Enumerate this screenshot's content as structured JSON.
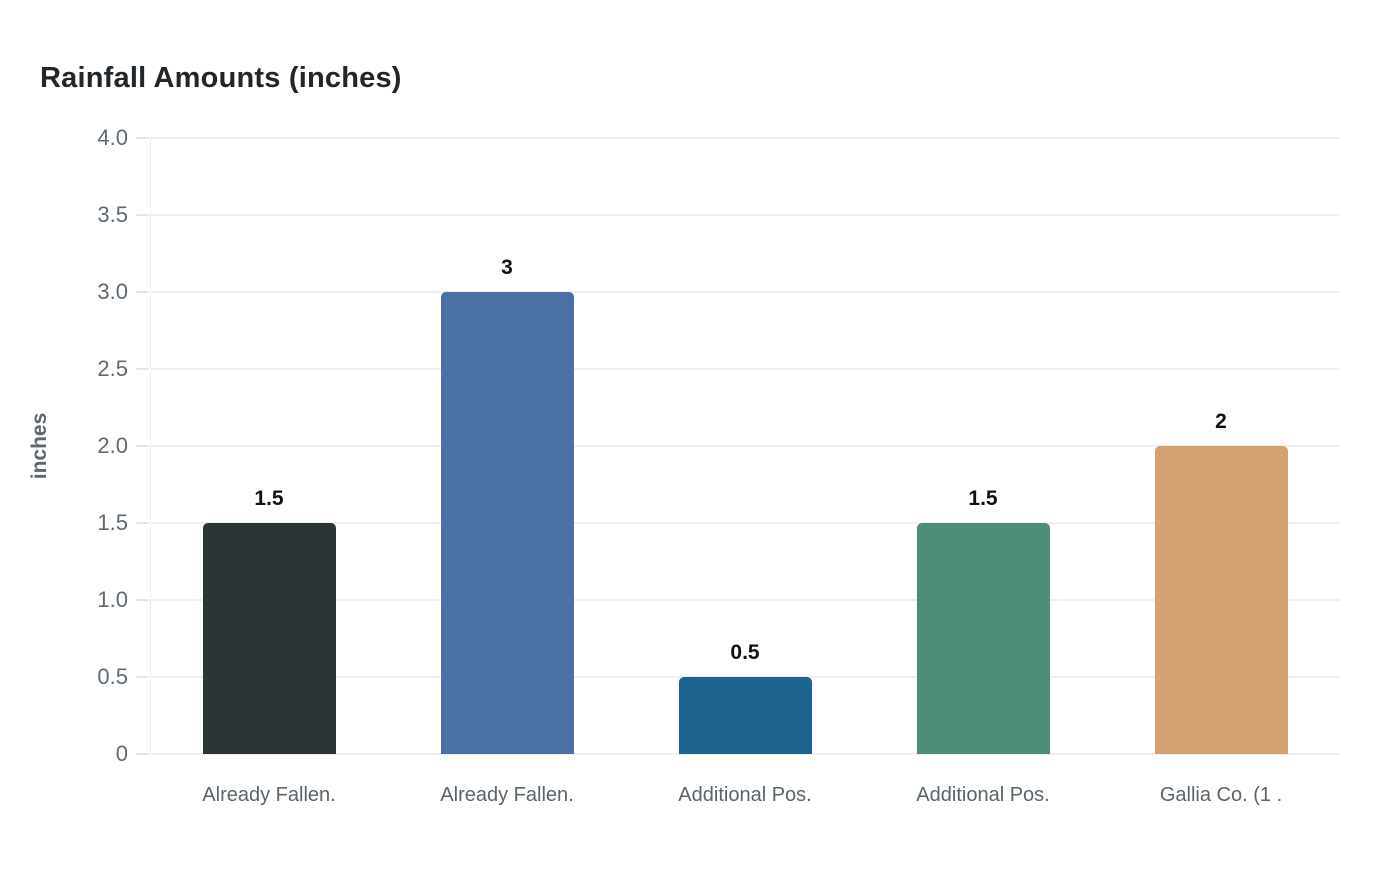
{
  "chart_data": {
    "type": "bar",
    "title": "Rainfall Amounts (inches)",
    "xlabel": "",
    "ylabel": "inches",
    "categories": [
      "Already Fallen.",
      "Already Fallen.",
      "Additional Pos.",
      "Additional Pos.",
      "Gallia Co. (1 ."
    ],
    "values": [
      1.5,
      3,
      0.5,
      1.5,
      2
    ],
    "value_labels": [
      "1.5",
      "3",
      "0.5",
      "1.5",
      "2"
    ],
    "bar_colors": [
      "#2b3336",
      "#4b70a6",
      "#1d6590",
      "#4f8d7b",
      "#d2a273"
    ],
    "yticks": [
      0,
      0.5,
      1.0,
      1.5,
      2.0,
      2.5,
      3.0,
      3.5,
      4.0
    ],
    "ytick_labels": [
      "0",
      "0.5",
      "1.0",
      "1.5",
      "2.0",
      "2.5",
      "3.0",
      "3.5",
      "4.0"
    ],
    "ylim": [
      0,
      4
    ],
    "grid": true,
    "legend": false
  },
  "colors": {
    "background": "#ffffff",
    "grid": "#efefef",
    "axis": "#e4e4e4",
    "tick_text": "#5f6a72",
    "category_text": "#5a646b",
    "value_text": "#111111",
    "title_text": "#20262a"
  }
}
